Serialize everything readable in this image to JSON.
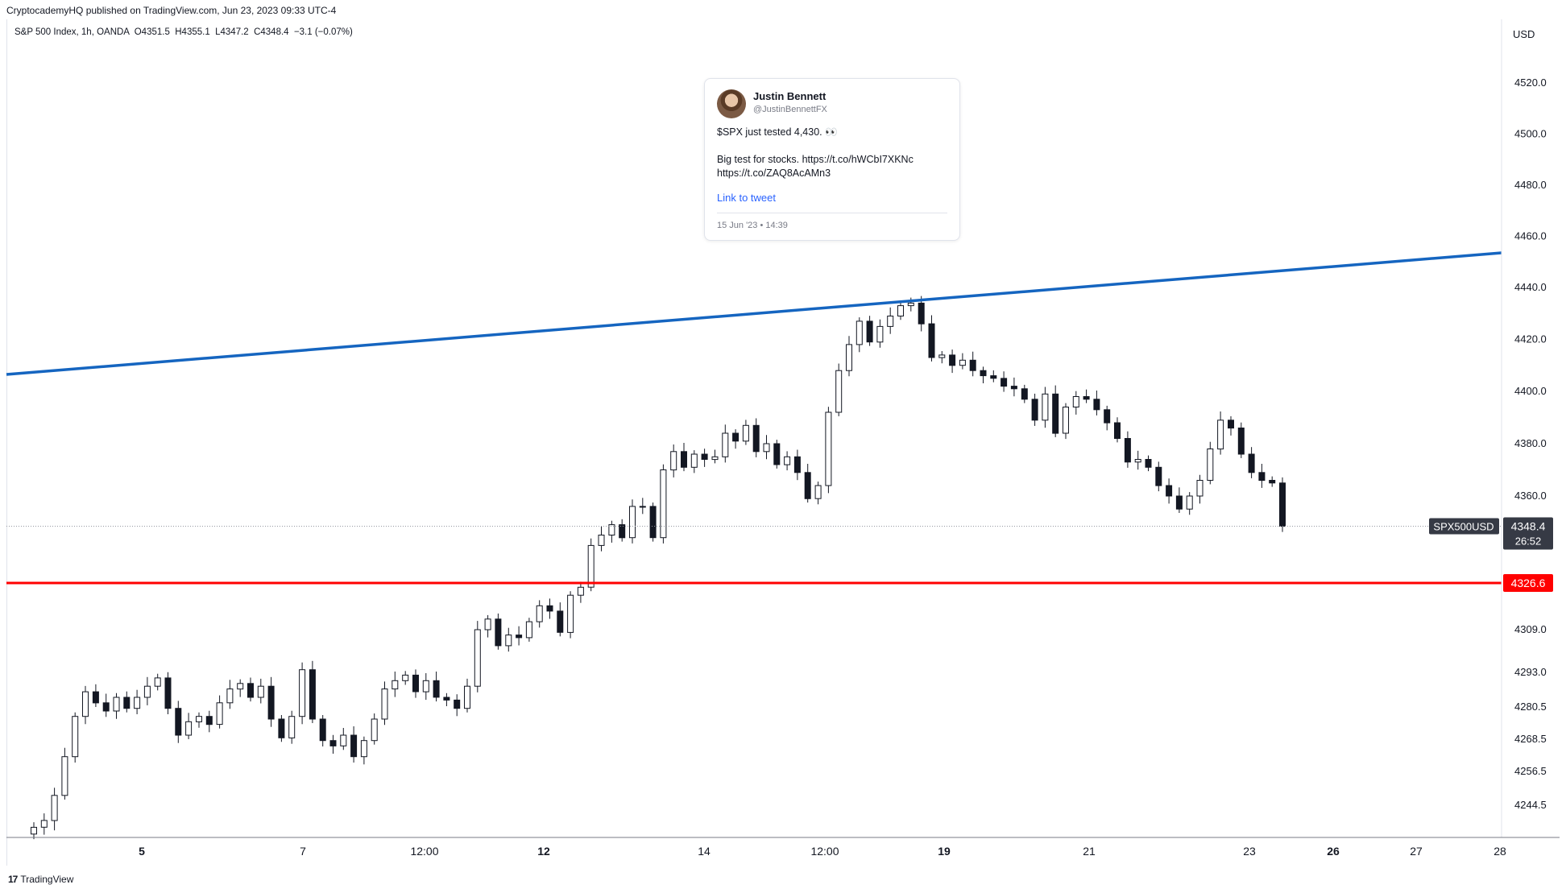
{
  "header": {
    "published": "CryptocademyHQ published on TradingView.com, Jun 23, 2023 09:33 UTC-4",
    "symbol_line": "S&P 500 Index, 1h, OANDA  O4351.5  H4355.1  L4347.2  C4348.4  −3.1 (−0.07%)"
  },
  "tweet": {
    "name": "Justin Bennett",
    "handle": "@JustinBennettFX",
    "body": "$SPX just tested 4,430. 👀\n\nBig test for stocks. https://t.co/hWCbI7XKNc\nhttps://t.co/ZAQ8AcAMn3",
    "link_label": "Link to tweet",
    "date": "15 Jun '23 • 14:39"
  },
  "footer": {
    "logo": "17",
    "brand": "TradingView"
  },
  "colors": {
    "trendline": "#1565c0",
    "support": "#ff0000",
    "candle": "#131722",
    "label_dark": "#363a45"
  },
  "chart_data": {
    "type": "line",
    "title": "",
    "currency": "USD",
    "y_ticks": [
      4520.0,
      4500.0,
      4480.0,
      4460.0,
      4440.0,
      4420.0,
      4400.0,
      4380.0,
      4360.0,
      4309.0,
      4293.0,
      4280.5,
      4268.5,
      4256.5,
      4244.5
    ],
    "x_ticks": [
      "5",
      "7",
      "12:00",
      "12",
      "14",
      "12:00",
      "19",
      "21",
      "23",
      "26",
      "27",
      "28"
    ],
    "x_ticks_bold": [
      true,
      false,
      false,
      true,
      false,
      false,
      true,
      false,
      false,
      true,
      false,
      false
    ],
    "last_price": {
      "symbol": "SPX500USD",
      "value": "4348.4",
      "countdown": "26:52"
    },
    "support_level": {
      "label": "4326.6",
      "value": 4326.6
    },
    "trendline": {
      "from": {
        "date": "Jun 2",
        "value": 4406
      },
      "to": {
        "date": "Jun 28",
        "value": 4453.5
      }
    },
    "series": [
      {
        "values": [
          4238,
          4240,
          4248,
          4262,
          4277,
          4286,
          4282,
          4279,
          4284,
          4280,
          4284,
          4288,
          4291,
          4280,
          4270,
          4275,
          4277,
          4274,
          4282,
          4287,
          4289,
          4284,
          4288,
          4276,
          4269,
          4277,
          4294,
          4276,
          4268,
          4266,
          4270,
          4262,
          4268,
          4276,
          4287,
          4290,
          4292,
          4286,
          4290,
          4284,
          4283,
          4280,
          4288,
          4309,
          4313,
          4303,
          4307,
          4306,
          4312,
          4318,
          4316,
          4308,
          4322,
          4325,
          4341,
          4345,
          4349,
          4344,
          4356,
          4356,
          4344,
          4370,
          4377,
          4371,
          4376,
          4374,
          4375,
          4384,
          4381,
          4387,
          4377,
          4380,
          4372,
          4375,
          4369,
          4359,
          4364,
          4392,
          4408,
          4418,
          4427,
          4419,
          4425,
          4429,
          4433,
          4434,
          4426,
          4413,
          4414,
          4410,
          4412,
          4408,
          4406,
          4405,
          4402,
          4401,
          4397,
          4389,
          4399,
          4384,
          4394,
          4398,
          4397,
          4393,
          4388,
          4382,
          4373,
          4374,
          4371,
          4364,
          4360,
          4355,
          4360,
          4366,
          4378,
          4389,
          4386,
          4376,
          4369,
          4366,
          4365,
          4348.4
        ]
      }
    ]
  }
}
